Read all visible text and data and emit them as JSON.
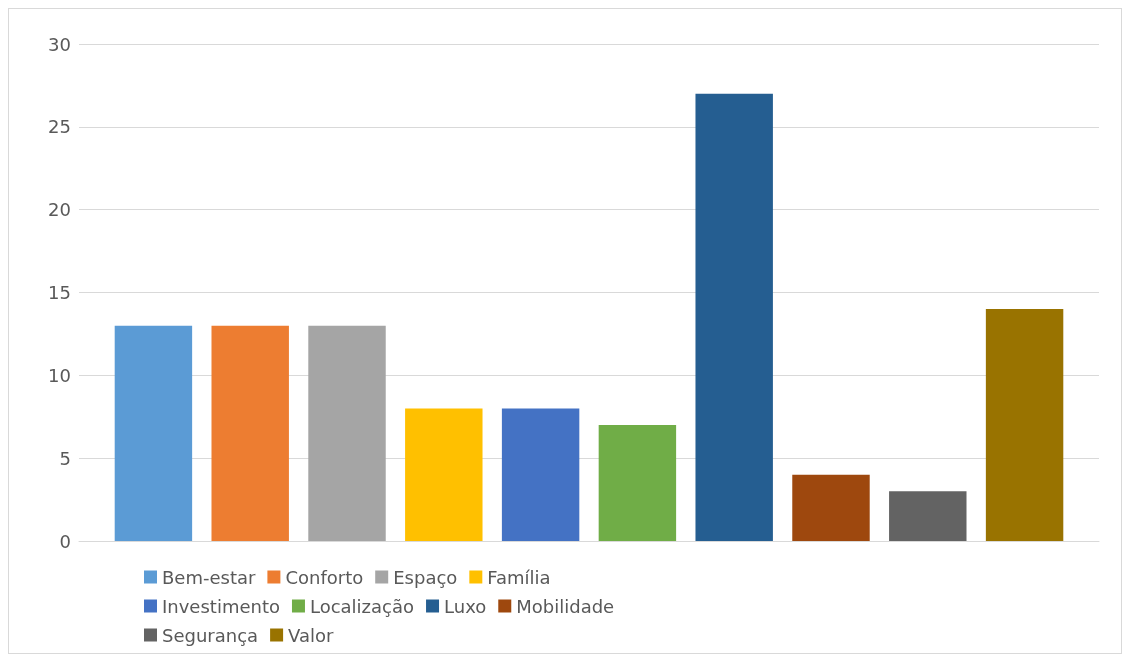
{
  "chart_data": {
    "type": "bar",
    "categories": [
      null
    ],
    "series": [
      {
        "name": "Bem-estar",
        "color": "#5b9bd5",
        "values": [
          13
        ]
      },
      {
        "name": "Conforto",
        "color": "#ed7d31",
        "values": [
          13
        ]
      },
      {
        "name": "Espaço",
        "color": "#a5a5a5",
        "values": [
          13
        ]
      },
      {
        "name": "Família",
        "color": "#ffc000",
        "values": [
          8
        ]
      },
      {
        "name": "Investimento",
        "color": "#4472c4",
        "values": [
          8
        ]
      },
      {
        "name": "Localização",
        "color": "#70ad47",
        "values": [
          7
        ]
      },
      {
        "name": "Luxo",
        "color": "#255e91",
        "values": [
          27
        ]
      },
      {
        "name": "Mobilidade",
        "color": "#9e480e",
        "values": [
          4
        ]
      },
      {
        "name": "Segurança",
        "color": "#636363",
        "values": [
          3
        ]
      },
      {
        "name": "Valor",
        "color": "#997300",
        "values": [
          14
        ]
      }
    ],
    "ylim": [
      0,
      30
    ],
    "yticks": [
      0,
      5,
      10,
      15,
      20,
      25,
      30
    ],
    "grid": "y",
    "legend": "bottom"
  }
}
